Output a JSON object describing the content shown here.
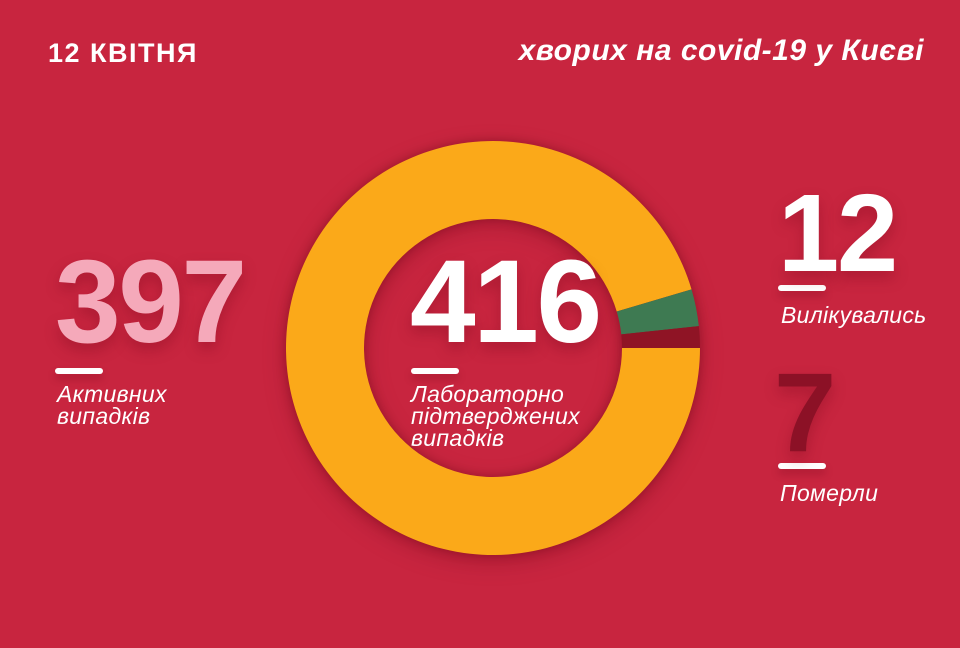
{
  "page": {
    "background_color": "#C8253F",
    "accent_white": "#FFFFFF"
  },
  "header": {
    "date": "12 КВІТНЯ",
    "title": "хворих на covid-19 у Києві"
  },
  "stats": {
    "active": {
      "value": "397",
      "color": "#F5A9BA",
      "label_lines": [
        "Активних",
        "випадків"
      ]
    },
    "confirmed": {
      "value": "416",
      "color": "#FFFFFF",
      "label_lines": [
        "Лабораторно",
        "підтверджених",
        "випадків"
      ]
    },
    "recovered": {
      "value": "12",
      "color": "#FFFFFF",
      "label": "Вилікувались"
    },
    "died": {
      "value": "7",
      "color": "#8C1126",
      "label": "Померли"
    }
  },
  "chart_data": {
    "type": "pie",
    "subtype": "donut",
    "title": "Лабораторно підтверджених випадків",
    "center_value": 416,
    "total": 416,
    "segments": [
      {
        "key": "active",
        "label": "Активних випадків",
        "value": 397,
        "color": "#FBA919"
      },
      {
        "key": "recovered",
        "label": "Вилікувались",
        "value": 12,
        "color": "#3E7A52"
      },
      {
        "key": "died",
        "label": "Померли",
        "value": 7,
        "color": "#8F1425"
      }
    ],
    "start_angle_deg": 0,
    "outer_radius": 207,
    "inner_radius": 129,
    "legend": "none"
  }
}
